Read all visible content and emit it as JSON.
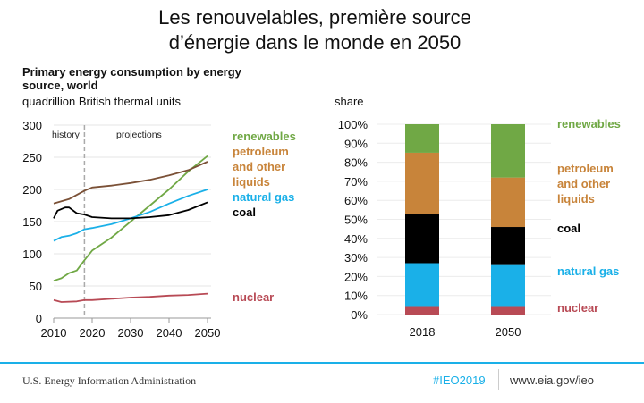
{
  "header": {
    "title_line1": "Les renouvelables, première source",
    "title_line2": "d’énergie dans le monde en 2050"
  },
  "footer": {
    "agency": "U.S. Energy Information Administration",
    "hashtag": "#IEO2019",
    "url": "www.eia.gov/ieo"
  },
  "colors": {
    "renewables": "#70a845",
    "petroleum": "#c8843a",
    "petroleum_line": "#7b5137",
    "natural_gas": "#1ab0e8",
    "coal": "#000000",
    "nuclear": "#b84a55",
    "accent": "#1ab0e8"
  },
  "chart_data": [
    {
      "type": "line",
      "title_line1": "Primary energy consumption by energy",
      "title_line2": "source, world",
      "ylabel": "quadrillion British thermal units",
      "xlim": [
        2010,
        2050
      ],
      "ylim": [
        0,
        300
      ],
      "yticks": [
        "0",
        "50",
        "100",
        "150",
        "200",
        "250",
        "300"
      ],
      "xticks": [
        "2010",
        "2020",
        "2030",
        "2040",
        "2050"
      ],
      "grid": true,
      "annotations": {
        "divider_year": 2018,
        "history": "history",
        "projections": "projections"
      },
      "legend_labels": {
        "renewables": "renewables",
        "petroleum": [
          "petroleum",
          "and other",
          "liquids"
        ],
        "natural_gas": "natural gas",
        "coal": "coal",
        "nuclear": "nuclear"
      },
      "series": [
        {
          "key": "renewables",
          "x": [
            2010,
            2012,
            2014,
            2016,
            2018,
            2020,
            2025,
            2030,
            2035,
            2040,
            2045,
            2050
          ],
          "y": [
            58,
            62,
            70,
            74,
            90,
            105,
            125,
            150,
            175,
            200,
            228,
            252
          ]
        },
        {
          "key": "petroleum",
          "x": [
            2010,
            2014,
            2018,
            2020,
            2025,
            2030,
            2035,
            2040,
            2045,
            2050
          ],
          "y": [
            178,
            185,
            198,
            203,
            206,
            210,
            215,
            222,
            230,
            243
          ]
        },
        {
          "key": "natural_gas",
          "x": [
            2010,
            2012,
            2014,
            2016,
            2018,
            2020,
            2025,
            2030,
            2035,
            2040,
            2045,
            2050
          ],
          "y": [
            120,
            126,
            128,
            132,
            138,
            140,
            146,
            155,
            165,
            178,
            190,
            200
          ]
        },
        {
          "key": "coal",
          "x": [
            2010,
            2011,
            2013,
            2014,
            2016,
            2018,
            2020,
            2025,
            2030,
            2035,
            2040,
            2045,
            2050
          ],
          "y": [
            155,
            167,
            172,
            172,
            163,
            161,
            157,
            155,
            155,
            157,
            160,
            168,
            180
          ]
        },
        {
          "key": "nuclear",
          "x": [
            2010,
            2012,
            2016,
            2018,
            2020,
            2025,
            2030,
            2035,
            2040,
            2045,
            2050
          ],
          "y": [
            28,
            25,
            26,
            28,
            28,
            30,
            32,
            33,
            35,
            36,
            38
          ]
        }
      ]
    },
    {
      "type": "bar",
      "stacked": true,
      "ylabel": "share",
      "ylim": [
        0,
        100
      ],
      "yticks": [
        "0%",
        "10%",
        "20%",
        "30%",
        "40%",
        "50%",
        "60%",
        "70%",
        "80%",
        "90%",
        "100%"
      ],
      "categories": [
        "2018",
        "2050"
      ],
      "grid": true,
      "legend_labels": {
        "renewables": "renewables",
        "petroleum": [
          "petroleum",
          "and other",
          "liquids"
        ],
        "coal": "coal",
        "natural_gas": "natural gas",
        "nuclear": "nuclear"
      },
      "series": [
        {
          "key": "nuclear",
          "values": [
            4,
            4
          ]
        },
        {
          "key": "natural_gas",
          "values": [
            23,
            22
          ]
        },
        {
          "key": "coal",
          "values": [
            26,
            20
          ]
        },
        {
          "key": "petroleum",
          "values": [
            32,
            26
          ]
        },
        {
          "key": "renewables",
          "values": [
            15,
            28
          ]
        }
      ]
    }
  ]
}
